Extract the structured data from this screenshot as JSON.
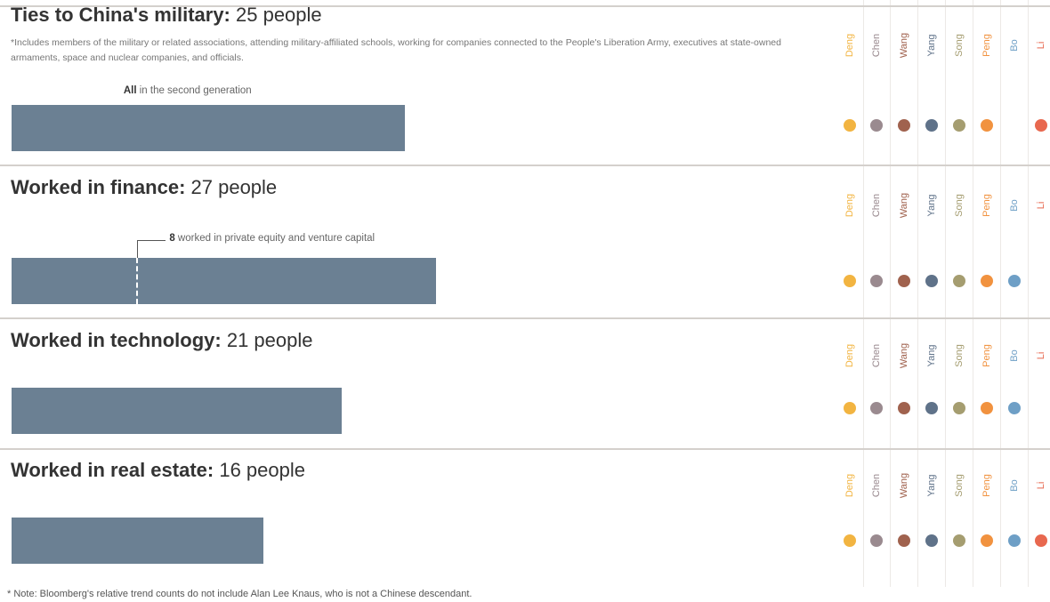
{
  "chart_data": {
    "type": "bar",
    "families": [
      {
        "name": "Deng",
        "color": "#f2b441"
      },
      {
        "name": "Chen",
        "color": "#9a8a8f"
      },
      {
        "name": "Wang",
        "color": "#a0624e"
      },
      {
        "name": "Yang",
        "color": "#5f7289"
      },
      {
        "name": "Song",
        "color": "#a59d70"
      },
      {
        "name": "Peng",
        "color": "#f1923f"
      },
      {
        "name": "Bo",
        "color": "#6e9fc6"
      },
      {
        "name": "Li",
        "color": "#e8684f"
      }
    ],
    "sections": [
      {
        "title_bold": "Ties to China's military:",
        "title_count": "25 people",
        "value": 25,
        "note": "*Includes members of the military or related associations, attending military-affiliated schools, working for companies connected to the People's Liberation Army, executives at state-owned armaments, space and nuclear companies, and officials.",
        "annotation_bold": "All",
        "annotation_text": "in the second generation",
        "families_present": [
          true,
          true,
          true,
          true,
          true,
          true,
          false,
          true
        ]
      },
      {
        "title_bold": "Worked in finance:",
        "title_count": "27 people",
        "value": 27,
        "annotation_bold": "8",
        "annotation_text": "worked in private equity and venture capital",
        "sub_value": 8,
        "families_present": [
          true,
          true,
          true,
          true,
          true,
          true,
          true,
          false
        ]
      },
      {
        "title_bold": "Worked in technology:",
        "title_count": "21 people",
        "value": 21,
        "families_present": [
          true,
          true,
          true,
          true,
          true,
          true,
          true,
          false
        ]
      },
      {
        "title_bold": "Worked in real estate:",
        "title_count": "16 people",
        "value": 16,
        "families_present": [
          true,
          true,
          true,
          true,
          true,
          true,
          true,
          true
        ]
      }
    ],
    "footnote": "* Note: Bloomberg's relative trend counts do not include Alan Lee Knaus, who is not a Chinese descendant."
  }
}
